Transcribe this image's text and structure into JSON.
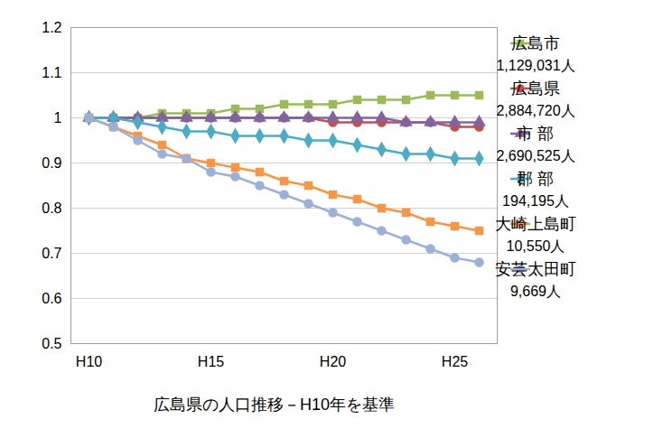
{
  "chart_data": {
    "type": "line",
    "title": "広島県の人口推移－H10年を基準",
    "categories": [
      "H10",
      null,
      null,
      null,
      null,
      "H15",
      null,
      null,
      null,
      null,
      "H20",
      null,
      null,
      null,
      null,
      "H25",
      null
    ],
    "ylim": [
      0.5,
      1.2
    ],
    "yticks": [
      0.5,
      0.6,
      0.7,
      0.8,
      0.9,
      1,
      1.1,
      1.2
    ],
    "grid": true,
    "legend": "right",
    "series": [
      {
        "name": "広島市",
        "population": "1,129,031人",
        "color": "#9BBB59",
        "marker": "square",
        "values": [
          1,
          1,
          1,
          1.01,
          1.01,
          1.01,
          1.02,
          1.02,
          1.03,
          1.03,
          1.03,
          1.04,
          1.04,
          1.04,
          1.05,
          1.05,
          1.05
        ]
      },
      {
        "name": "広島県",
        "population": "2,884,720人",
        "color": "#C0504D",
        "marker": "circle",
        "values": [
          1,
          1,
          1,
          1,
          1,
          1,
          1,
          1,
          1,
          1,
          0.99,
          0.99,
          0.99,
          0.99,
          0.99,
          0.98,
          0.98
        ]
      },
      {
        "name": "市 部",
        "population": "2,690,525人",
        "color": "#8064A2",
        "marker": "triangle",
        "values": [
          1,
          1,
          1,
          1,
          1,
          1,
          1,
          1,
          1,
          1,
          1,
          1,
          1,
          0.99,
          0.99,
          0.99,
          0.99
        ]
      },
      {
        "name": "郡 部",
        "population": "194,195人",
        "color": "#4BACC6",
        "marker": "diamond",
        "values": [
          1,
          1,
          0.99,
          0.98,
          0.97,
          0.97,
          0.96,
          0.96,
          0.96,
          0.95,
          0.95,
          0.94,
          0.93,
          0.92,
          0.92,
          0.91,
          0.91
        ]
      },
      {
        "name": "大崎上島町",
        "population": "10,550人",
        "color": "#F79646",
        "marker": "square",
        "values": [
          1,
          0.98,
          0.96,
          0.94,
          0.91,
          0.9,
          0.89,
          0.88,
          0.86,
          0.85,
          0.83,
          0.82,
          0.8,
          0.79,
          0.77,
          0.76,
          0.75
        ]
      },
      {
        "name": "安芸太田町",
        "population": "9,669人",
        "color": "#9CB0D8",
        "marker": "circle",
        "values": [
          1,
          0.98,
          0.95,
          0.92,
          0.91,
          0.88,
          0.87,
          0.85,
          0.83,
          0.81,
          0.79,
          0.77,
          0.75,
          0.73,
          0.71,
          0.69,
          0.68
        ]
      }
    ]
  }
}
